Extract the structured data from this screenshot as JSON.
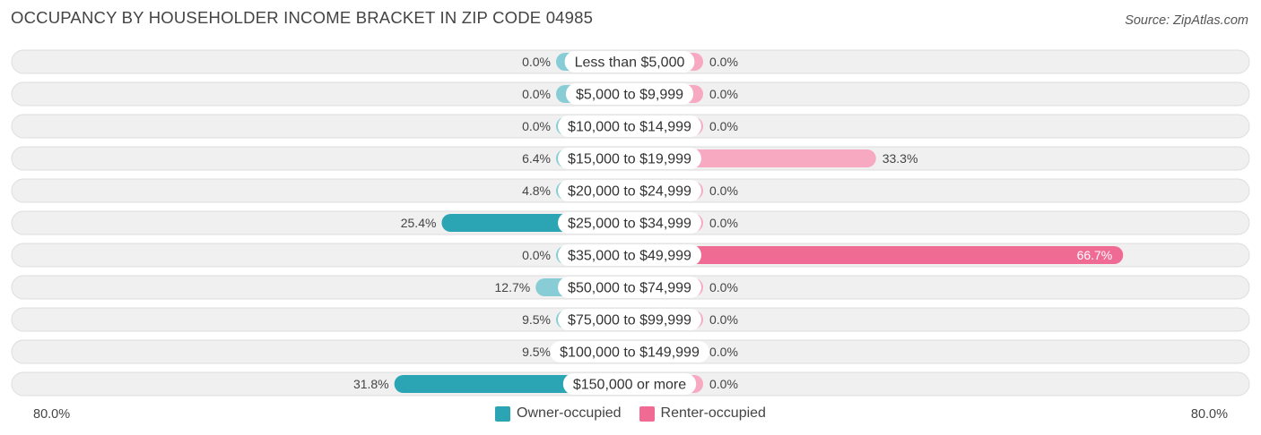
{
  "title": "OCCUPANCY BY HOUSEHOLDER INCOME BRACKET IN ZIP CODE 04985",
  "source": "Source: ZipAtlas.com",
  "colors": {
    "owner": "#2ba5b4",
    "owner_light": "#88cdd6",
    "renter": "#f06b93",
    "renter_light": "#f6a9c1",
    "row_bg": "#f0f0f0",
    "row_border": "#dddddd"
  },
  "chart_data": {
    "type": "bar",
    "orientation": "horizontal-diverging",
    "categories": [
      "Less than $5,000",
      "$5,000 to $9,999",
      "$10,000 to $14,999",
      "$15,000 to $19,999",
      "$20,000 to $24,999",
      "$25,000 to $34,999",
      "$35,000 to $49,999",
      "$50,000 to $74,999",
      "$75,000 to $99,999",
      "$100,000 to $149,999",
      "$150,000 or more"
    ],
    "series": [
      {
        "name": "Owner-occupied",
        "values": [
          0.0,
          0.0,
          0.0,
          6.4,
          4.8,
          25.4,
          0.0,
          12.7,
          9.5,
          9.5,
          31.8
        ],
        "labels": [
          "0.0%",
          "0.0%",
          "0.0%",
          "6.4%",
          "4.8%",
          "25.4%",
          "0.0%",
          "12.7%",
          "9.5%",
          "9.5%",
          "31.8%"
        ]
      },
      {
        "name": "Renter-occupied",
        "values": [
          0.0,
          0.0,
          0.0,
          33.3,
          0.0,
          0.0,
          66.7,
          0.0,
          0.0,
          0.0,
          0.0
        ],
        "labels": [
          "0.0%",
          "0.0%",
          "0.0%",
          "33.3%",
          "0.0%",
          "0.0%",
          "66.7%",
          "0.0%",
          "0.0%",
          "0.0%",
          "0.0%"
        ]
      }
    ],
    "xlim": [
      -80,
      80
    ],
    "axis_left_label": "80.0%",
    "axis_right_label": "80.0%",
    "legend_placement": "bottom-center"
  }
}
